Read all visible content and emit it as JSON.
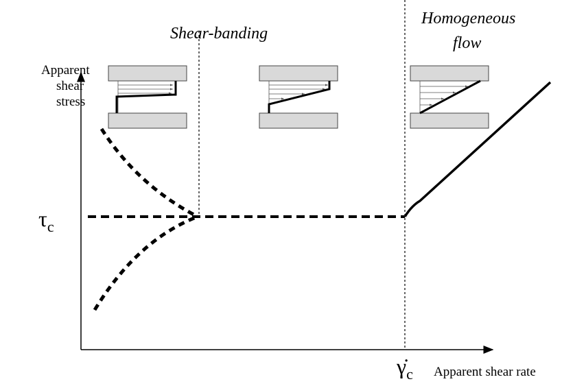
{
  "labels": {
    "shear_banding": "Shear-banding",
    "homogeneous_line1": "Homogeneous",
    "homogeneous_line2": "flow",
    "y_axis_line1": "Apparent",
    "y_axis_line2": "shear",
    "y_axis_line3": "stress",
    "tau_symbol": "τ",
    "tau_subscript": "c",
    "gamma_symbol": "γ̇",
    "gamma_subscript": "c",
    "x_axis": "Apparent shear rate"
  }
}
